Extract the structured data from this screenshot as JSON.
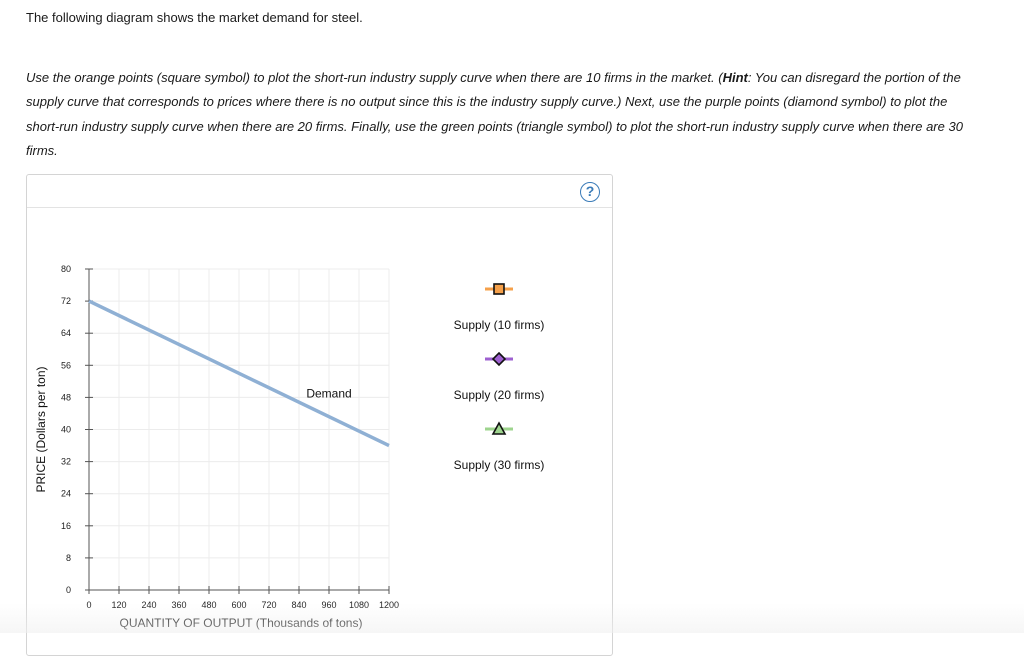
{
  "intro": "The following diagram shows the market demand for steel.",
  "instructions": {
    "part1": "Use the orange points (square symbol) to plot the short-run industry supply curve when there are 10 firms in the market. (",
    "hint_label": "Hint",
    "part2": ": You can disregard the portion of the supply curve that corresponds to prices where there is no output since this is the industry supply curve.) Next, use the purple points (diamond symbol) to plot the short-run industry supply curve when there are 20 firms. Finally, use the green points (triangle symbol) to plot the short-run industry supply curve when there are 30 firms."
  },
  "help_button": "?",
  "chart_data": {
    "type": "line",
    "xlabel": "QUANTITY OF OUTPUT (Thousands of tons)",
    "ylabel": "PRICE (Dollars per ton)",
    "xlim": [
      0,
      1200
    ],
    "ylim": [
      0,
      80
    ],
    "xticks": [
      0,
      120,
      240,
      360,
      480,
      600,
      720,
      840,
      960,
      1080,
      1200
    ],
    "yticks": [
      0,
      8,
      16,
      24,
      32,
      40,
      48,
      56,
      64,
      72,
      80
    ],
    "grid": true,
    "series": [
      {
        "name": "Demand",
        "color": "#8fb0d4",
        "x": [
          0,
          1200
        ],
        "y": [
          72,
          36
        ],
        "label_at": {
          "x": 960,
          "y": 48
        }
      }
    ],
    "legend": [
      {
        "label": "Supply (10 firms)",
        "symbol": "square",
        "color": "#f5a04a"
      },
      {
        "label": "Supply (20 firms)",
        "symbol": "diamond",
        "color": "#9e60d0"
      },
      {
        "label": "Supply (30 firms)",
        "symbol": "triangle",
        "color": "#9ed48e"
      }
    ],
    "legend_placement": "right"
  }
}
